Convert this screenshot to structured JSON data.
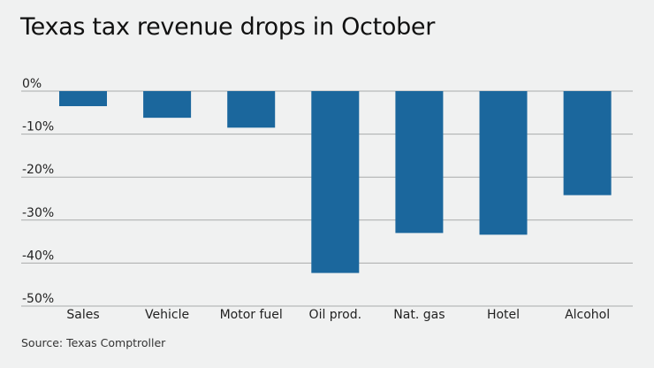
{
  "chart_data": {
    "type": "bar",
    "title": "Texas tax revenue drops in October",
    "categories": [
      "Sales",
      "Vehicle",
      "Motor fuel",
      "Oil prod.",
      "Nat. gas",
      "Hotel",
      "Alcohol"
    ],
    "values": [
      -3.5,
      -6.2,
      -8.5,
      -42.3,
      -33.0,
      -33.4,
      -24.2
    ],
    "value_unit": "percent",
    "xlabel": "",
    "ylabel": "",
    "ylim": [
      -50,
      0
    ],
    "yticks": [
      0,
      -10,
      -20,
      -30,
      -40,
      -50
    ],
    "ytick_labels": [
      "0%",
      "-10%",
      "-20%",
      "-30%",
      "-40%",
      "-50%"
    ],
    "grid": true,
    "legend": "none",
    "bar_color": "#1b679d",
    "source": "Source: Texas Comptroller"
  }
}
